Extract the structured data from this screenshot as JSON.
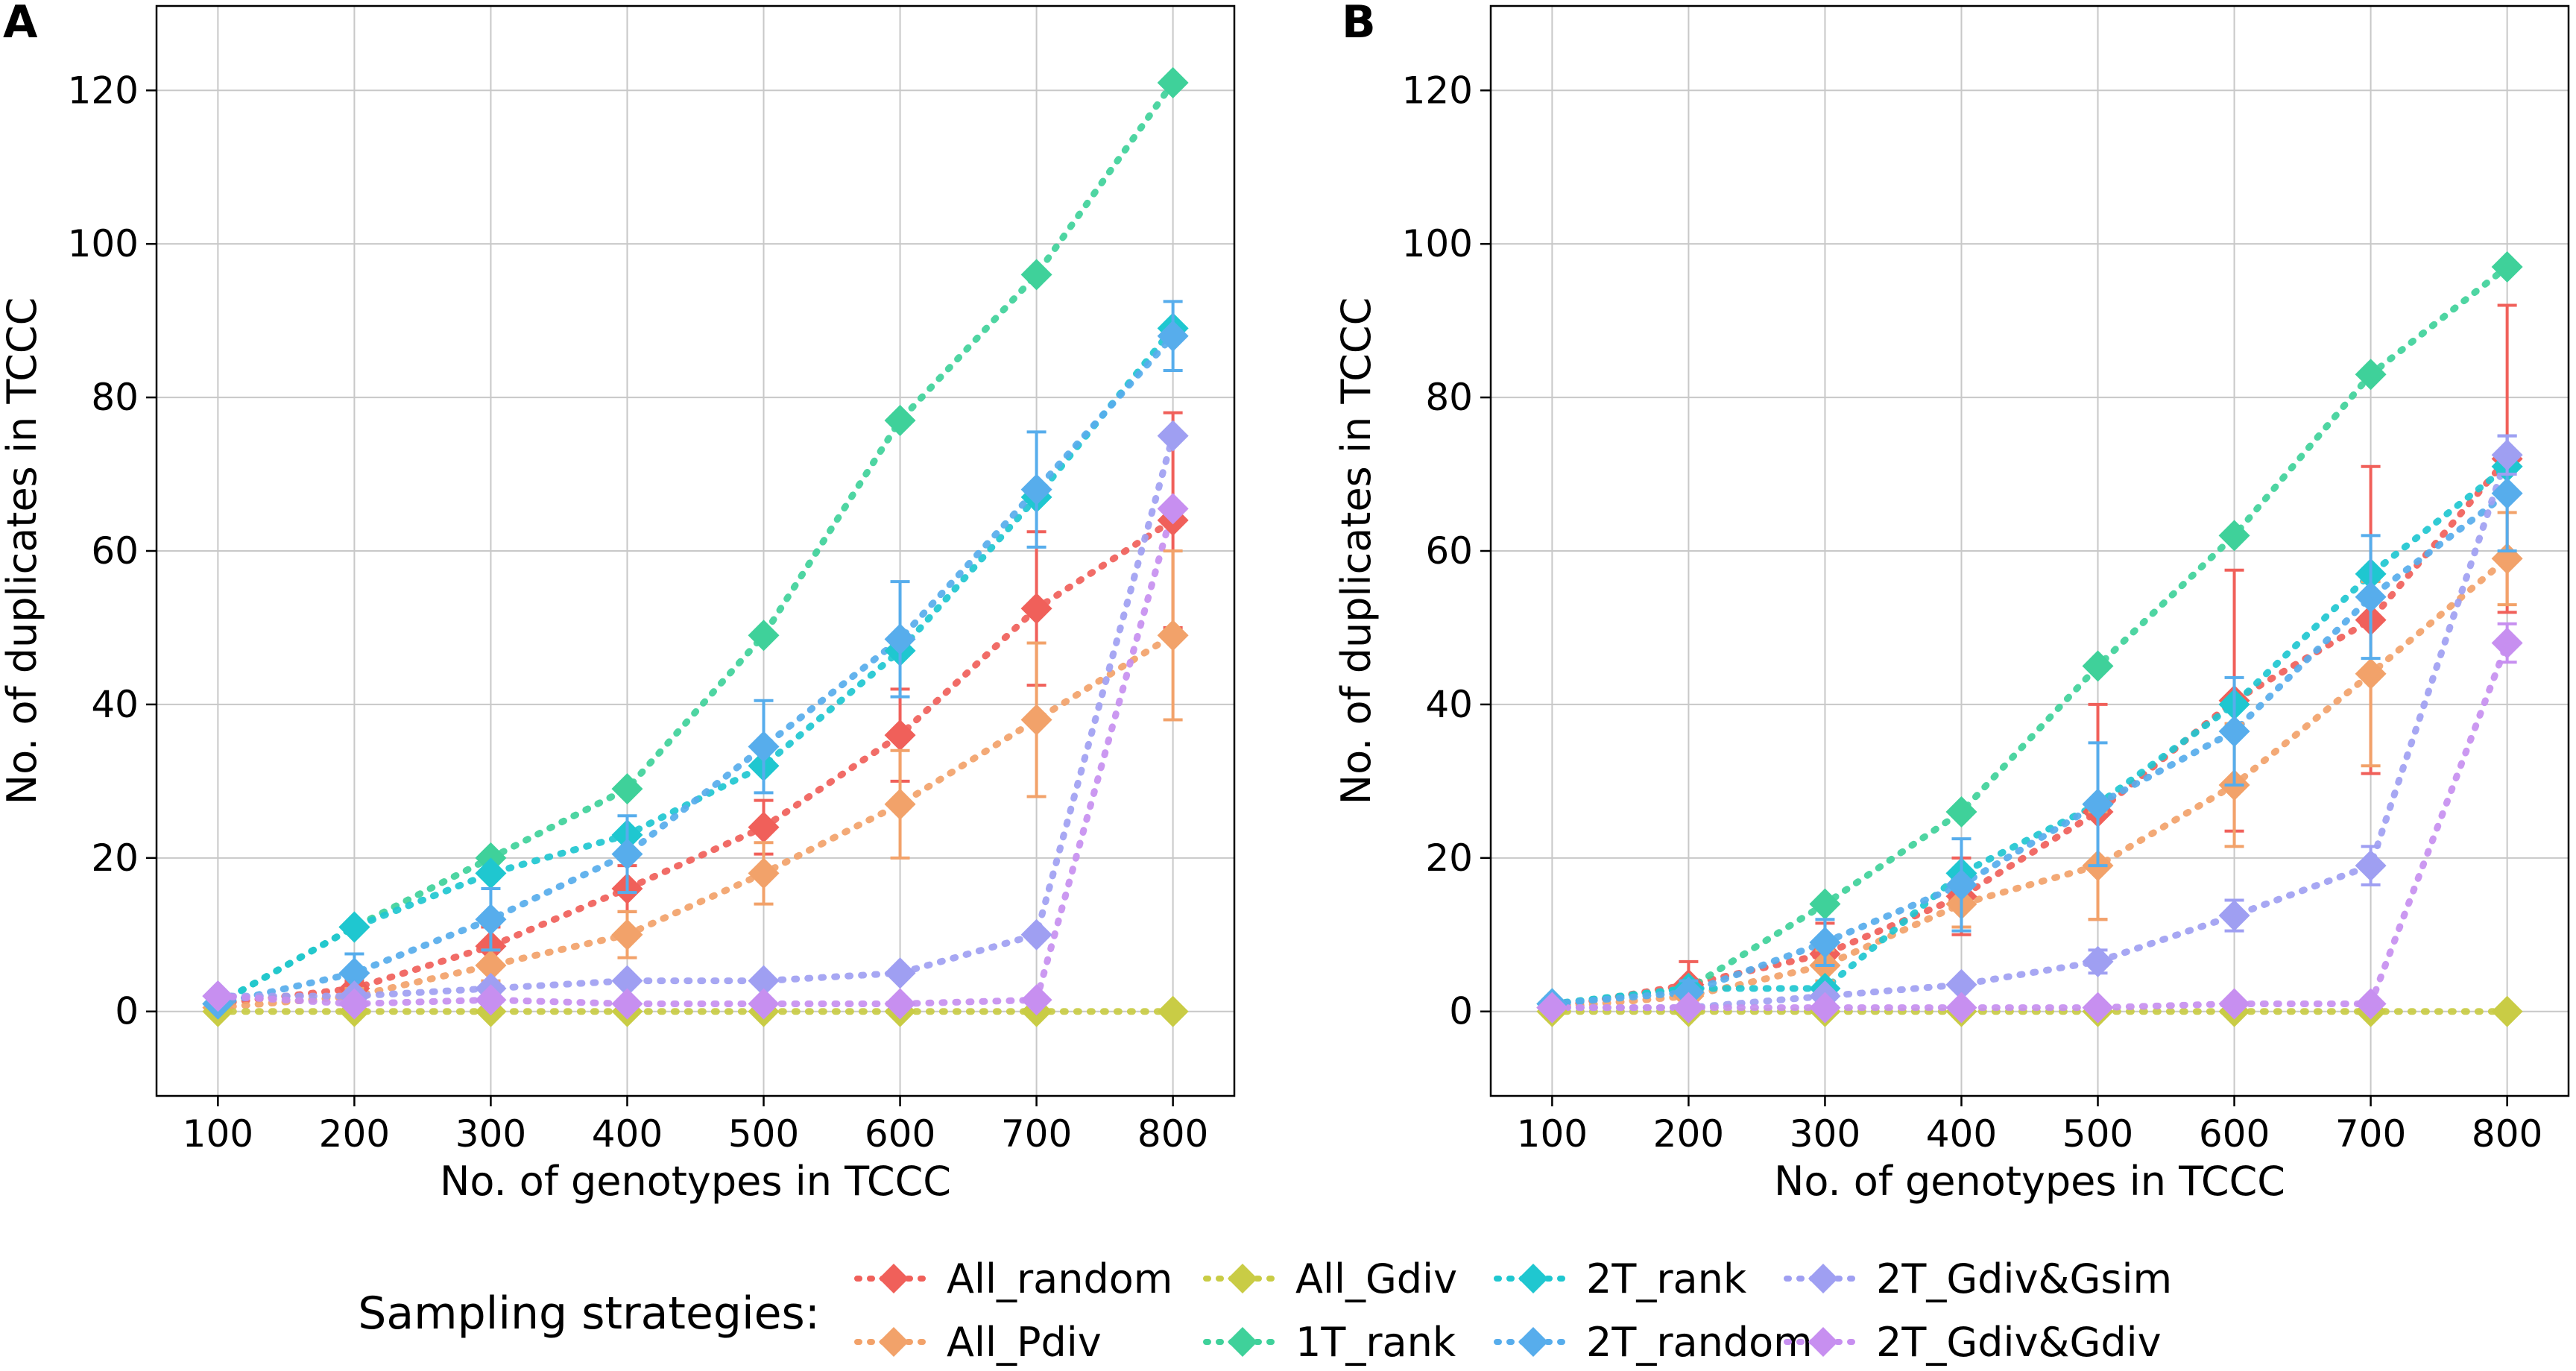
{
  "legend": {
    "title": "Sampling strategies:",
    "colors": {
      "All_random": "#f0605a",
      "All_Pdiv": "#f2a26a",
      "All_Gdiv": "#c9cc45",
      "1T_rank": "#3fd19a",
      "2T_rank": "#1fc7d0",
      "2T_random": "#57adec",
      "2T_Gdiv&Gsim": "#9f9ff2",
      "2T_Gdiv&Gdiv": "#c78ff0"
    }
  },
  "chart_data": [
    {
      "panel": "A",
      "type": "line",
      "xlabel": "No. of genotypes in TCCC",
      "ylabel": "No. of duplicates in TCCC",
      "xlim": [
        55,
        845
      ],
      "ylim": [
        -11,
        131
      ],
      "xticks": [
        100,
        200,
        300,
        400,
        500,
        600,
        700,
        800
      ],
      "yticks": [
        0,
        20,
        40,
        60,
        80,
        100,
        120
      ],
      "grid": true,
      "x": [
        100,
        200,
        300,
        400,
        500,
        600,
        700,
        800
      ],
      "series": [
        {
          "name": "All_random",
          "values": [
            1,
            3,
            8.5,
            16,
            24,
            36,
            52.5,
            64
          ],
          "err": [
            0,
            1,
            2.5,
            3,
            3.5,
            6,
            10,
            14
          ]
        },
        {
          "name": "All_Pdiv",
          "values": [
            0.5,
            2,
            6,
            10,
            18,
            27,
            38,
            49
          ],
          "err": [
            0,
            1,
            2,
            3,
            4,
            7,
            10,
            11
          ]
        },
        {
          "name": "All_Gdiv",
          "values": [
            0,
            0,
            0,
            0,
            0,
            0,
            0,
            0
          ],
          "err": [
            0,
            0,
            0,
            0,
            0,
            0,
            0,
            0
          ]
        },
        {
          "name": "1T_rank",
          "values": [
            1,
            11,
            20,
            29,
            49,
            77,
            96,
            121
          ],
          "err": [
            0,
            0,
            0,
            0,
            0,
            0,
            0,
            0
          ]
        },
        {
          "name": "2T_rank",
          "values": [
            1,
            11,
            18,
            23,
            32,
            47,
            67,
            89
          ],
          "err": [
            0,
            0,
            0,
            0,
            0,
            0,
            0,
            0
          ]
        },
        {
          "name": "2T_random",
          "values": [
            1,
            5,
            12,
            20.5,
            34.5,
            48.5,
            68,
            88
          ],
          "err": [
            0,
            2.5,
            4,
            5,
            6,
            7.5,
            7.5,
            4.5
          ]
        },
        {
          "name": "2T_Gdiv&Gsim",
          "values": [
            2,
            2,
            3,
            4,
            4,
            5,
            10,
            75
          ],
          "err": [
            0,
            0,
            0,
            0,
            0,
            0,
            0,
            0
          ]
        },
        {
          "name": "2T_Gdiv&Gdiv",
          "values": [
            2,
            1,
            1.5,
            1,
            1,
            1,
            1.5,
            65.5
          ],
          "err": [
            0,
            0,
            0,
            0,
            0,
            0,
            0,
            0
          ]
        }
      ]
    },
    {
      "panel": "B",
      "type": "line",
      "xlabel": "No. of genotypes in TCCC",
      "ylabel": "No. of duplicates in TCCC",
      "xlim": [
        55,
        845
      ],
      "ylim": [
        -11,
        131
      ],
      "xticks": [
        100,
        200,
        300,
        400,
        500,
        600,
        700,
        800
      ],
      "yticks": [
        0,
        20,
        40,
        60,
        80,
        100,
        120
      ],
      "grid": true,
      "x": [
        100,
        200,
        300,
        400,
        500,
        600,
        700,
        800
      ],
      "series": [
        {
          "name": "All_random",
          "values": [
            0.5,
            3.5,
            7.5,
            15,
            26,
            40.5,
            51,
            72
          ],
          "err": [
            0,
            3,
            4,
            5,
            14,
            17,
            20,
            20
          ]
        },
        {
          "name": "All_Pdiv",
          "values": [
            0.5,
            2,
            6,
            14,
            19,
            29.5,
            44,
            59
          ],
          "err": [
            0,
            1,
            2,
            3,
            7,
            8,
            12,
            6
          ]
        },
        {
          "name": "All_Gdiv",
          "values": [
            0,
            0,
            0,
            0,
            0,
            0,
            0,
            0
          ],
          "err": [
            0,
            0,
            0,
            0,
            0,
            0,
            0,
            0
          ]
        },
        {
          "name": "1T_rank",
          "values": [
            1,
            3,
            14,
            26,
            45,
            62,
            83,
            97
          ],
          "err": [
            0,
            0,
            0,
            0,
            0,
            0,
            0,
            0
          ]
        },
        {
          "name": "2T_rank",
          "values": [
            1,
            3,
            3,
            18,
            27,
            40,
            57,
            71
          ],
          "err": [
            0,
            0,
            0,
            0,
            0,
            0,
            0,
            0
          ]
        },
        {
          "name": "2T_random",
          "values": [
            1,
            2.5,
            9,
            16.5,
            27,
            36.5,
            54,
            67.5
          ],
          "err": [
            0,
            1.5,
            3,
            6,
            8,
            7,
            8,
            7.5
          ]
        },
        {
          "name": "2T_Gdiv&Gsim",
          "values": [
            0.5,
            0.5,
            2,
            3.5,
            6.5,
            12.5,
            19,
            72.5
          ],
          "err": [
            0,
            0,
            0,
            0,
            1.5,
            2,
            2.5,
            2.5
          ]
        },
        {
          "name": "2T_Gdiv&Gdiv",
          "values": [
            0.5,
            0.5,
            0.5,
            0.5,
            0.5,
            1,
            1,
            48
          ],
          "err": [
            0,
            0,
            0,
            0,
            0,
            0,
            0,
            2.5
          ]
        }
      ]
    }
  ]
}
